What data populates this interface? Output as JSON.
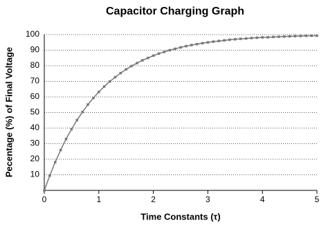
{
  "chart_data": {
    "type": "line",
    "title": "Capacitor Charging Graph",
    "x_label": "Time Constants (τ)",
    "y_label": "Pecentage (%) of Final Voltage",
    "x": [
      0,
      0.1,
      0.2,
      0.3,
      0.4,
      0.5,
      0.6,
      0.7,
      0.8,
      0.9,
      1,
      1.1,
      1.2,
      1.3,
      1.4,
      1.5,
      1.6,
      1.7,
      1.8,
      1.9,
      2,
      2.1,
      2.2,
      2.3,
      2.4,
      2.5,
      2.6,
      2.7,
      2.8,
      2.9,
      3,
      3.1,
      3.2,
      3.3,
      3.4,
      3.5,
      3.6,
      3.7,
      3.8,
      3.9,
      4,
      4.1,
      4.2,
      4.3,
      4.4,
      4.5,
      4.6,
      4.7,
      4.8,
      4.9,
      5
    ],
    "series": [
      {
        "color": "#777777",
        "values": [
          0,
          9.5,
          18.1,
          25.9,
          33.0,
          39.3,
          45.1,
          50.3,
          55.1,
          59.3,
          63.2,
          66.7,
          69.9,
          72.7,
          75.3,
          77.7,
          79.8,
          81.7,
          83.5,
          85.0,
          86.5,
          87.8,
          88.9,
          90.0,
          90.9,
          91.8,
          92.6,
          93.3,
          93.9,
          94.5,
          95.0,
          95.5,
          95.9,
          96.3,
          96.7,
          97.0,
          97.3,
          97.5,
          97.8,
          98.0,
          98.2,
          98.3,
          98.5,
          98.6,
          98.8,
          98.9,
          99.0,
          99.1,
          99.2,
          99.3,
          99.3
        ]
      }
    ],
    "xlim": [
      0,
      5
    ],
    "xticks": [
      0,
      1,
      2,
      3,
      4,
      5
    ],
    "ylim": [
      0,
      100
    ],
    "yticks": [
      10,
      20,
      30,
      40,
      50,
      60,
      70,
      80,
      90,
      100
    ],
    "grid": true
  }
}
